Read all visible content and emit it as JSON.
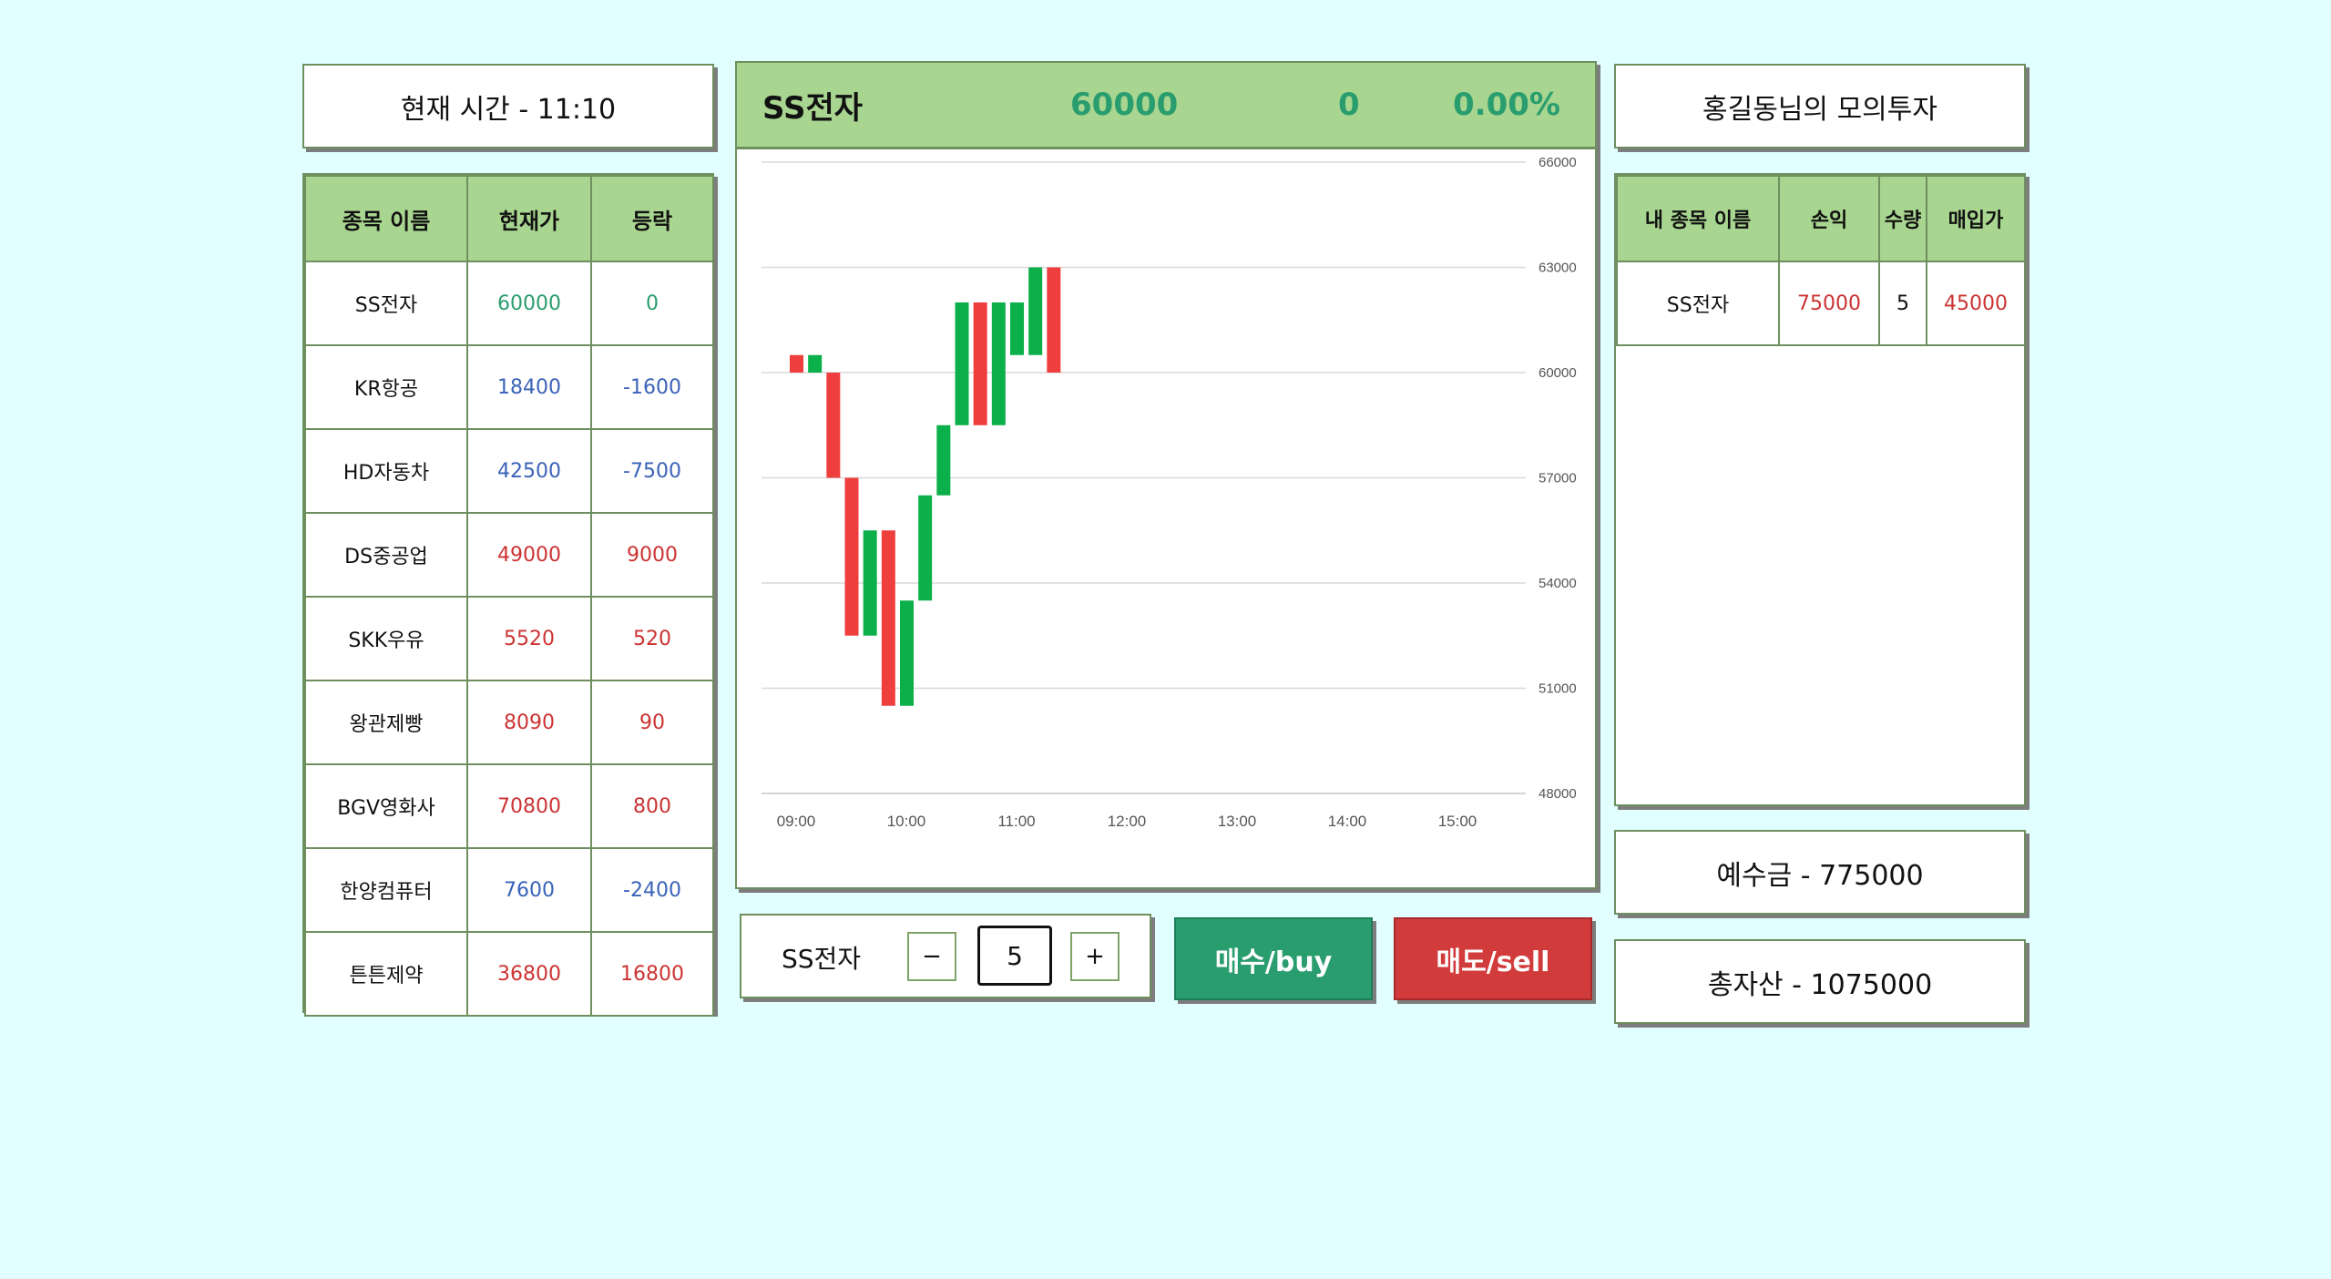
{
  "clock": {
    "label": "현재 시간 - 11:10"
  },
  "portfolio_title": "홍길동님의 모의투자",
  "stocks": {
    "headers": [
      "종목 이름",
      "현재가",
      "등락"
    ],
    "rows": [
      {
        "name": "SS전자",
        "price": "60000",
        "change": "0",
        "color": "green"
      },
      {
        "name": "KR항공",
        "price": "18400",
        "change": "-1600",
        "color": "blue"
      },
      {
        "name": "HD자동차",
        "price": "42500",
        "change": "-7500",
        "color": "blue"
      },
      {
        "name": "DS중공업",
        "price": "49000",
        "change": "9000",
        "color": "red"
      },
      {
        "name": "SKK우유",
        "price": "5520",
        "change": "520",
        "color": "red"
      },
      {
        "name": "왕관제빵",
        "price": "8090",
        "change": "90",
        "color": "red"
      },
      {
        "name": "BGV영화사",
        "price": "70800",
        "change": "800",
        "color": "red"
      },
      {
        "name": "한양컴퓨터",
        "price": "7600",
        "change": "-2400",
        "color": "blue"
      },
      {
        "name": "튼튼제약",
        "price": "36800",
        "change": "16800",
        "color": "red"
      }
    ]
  },
  "selected": {
    "name": "SS전자",
    "price": "60000",
    "change": "0",
    "change_pct": "0.00%"
  },
  "holdings": {
    "headers": [
      "내 종목 이름",
      "손익",
      "수량",
      "매입가"
    ],
    "rows": [
      {
        "name": "SS전자",
        "profit": "75000",
        "qty": "5",
        "buy_price": "45000"
      }
    ]
  },
  "deposit": {
    "label": "예수금 - 775000"
  },
  "total_assets": {
    "label": "총자산 - 1075000"
  },
  "order": {
    "stock_name": "SS전자",
    "minus": "−",
    "plus": "+",
    "quantity": "5",
    "buy_label": "매수/buy",
    "sell_label": "매도/sell"
  },
  "colors": {
    "up": "#ef3e3e",
    "down": "#0cb04a",
    "panel_header": "#a8d58f",
    "buy": "#2a9d6f",
    "sell": "#d23b3b",
    "background": "#e0fffe"
  },
  "chart_data": {
    "type": "candlestick",
    "x_ticks": [
      "09:00",
      "10:00",
      "11:00",
      "12:00",
      "13:00",
      "14:00",
      "15:00"
    ],
    "y_ticks": [
      "48000",
      "51000",
      "54000",
      "57000",
      "60000",
      "63000",
      "66000"
    ],
    "ylim": [
      48000,
      66000
    ],
    "grid": true,
    "candles": [
      {
        "time": "09:00",
        "open": 60500,
        "close": 60000
      },
      {
        "time": "09:10",
        "open": 60000,
        "close": 60500
      },
      {
        "time": "09:20",
        "open": 60000,
        "close": 57000
      },
      {
        "time": "09:30",
        "open": 57000,
        "close": 52500
      },
      {
        "time": "09:40",
        "open": 52500,
        "close": 55500
      },
      {
        "time": "09:50",
        "open": 55500,
        "close": 50500
      },
      {
        "time": "10:00",
        "open": 50500,
        "close": 53500
      },
      {
        "time": "10:10",
        "open": 53500,
        "close": 56500
      },
      {
        "time": "10:20",
        "open": 56500,
        "close": 58500
      },
      {
        "time": "10:30",
        "open": 58500,
        "close": 62000
      },
      {
        "time": "10:40",
        "open": 62000,
        "close": 58500
      },
      {
        "time": "10:50",
        "open": 58500,
        "close": 62000
      },
      {
        "time": "11:00",
        "open": 60500,
        "close": 62000
      },
      {
        "time": "11:10",
        "open": 60500,
        "close": 63000
      },
      {
        "time": "11:20",
        "open": 63000,
        "close": 60000
      }
    ]
  }
}
